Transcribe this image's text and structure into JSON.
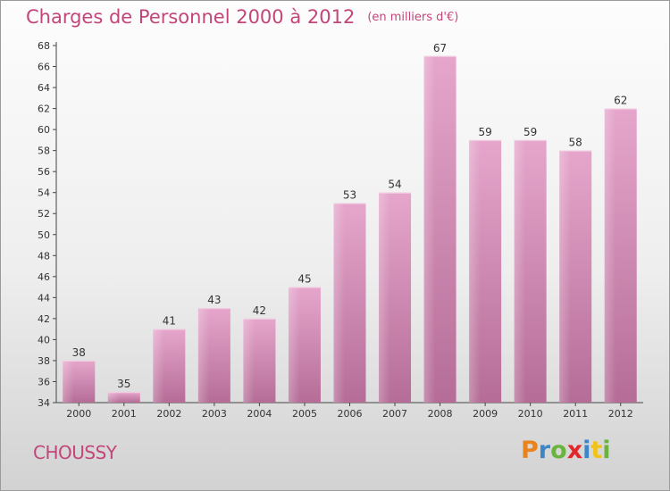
{
  "title": "Charges de Personnel 2000 à 2012",
  "subtitle": "(en milliers d'€)",
  "commune": "CHOUSSY",
  "logo": {
    "text": "Proxiti",
    "letters": [
      "P",
      "r",
      "o",
      "x",
      "i",
      "t",
      "i"
    ],
    "colors": [
      "#e8831d",
      "#3d87c8",
      "#6ab33d",
      "#e2262d",
      "#3d87c8",
      "#f1c21b",
      "#6ab33d"
    ]
  },
  "colors": {
    "bar_top": "#e6a6cc",
    "bar_bottom": "#b56d97",
    "title": "#c2467a"
  },
  "chart_data": {
    "type": "bar",
    "categories": [
      "2000",
      "2001",
      "2002",
      "2003",
      "2004",
      "2005",
      "2006",
      "2007",
      "2008",
      "2009",
      "2010",
      "2011",
      "2012"
    ],
    "values": [
      38,
      35,
      41,
      43,
      42,
      45,
      53,
      54,
      67,
      59,
      59,
      58,
      62
    ],
    "title": "Charges de Personnel 2000 à 2012",
    "xlabel": "",
    "ylabel": "",
    "ylim": [
      34,
      68
    ],
    "yticks": [
      34,
      36,
      38,
      40,
      42,
      44,
      46,
      48,
      50,
      52,
      54,
      56,
      58,
      60,
      62,
      64,
      66,
      68
    ],
    "data_labels": true,
    "grid": false
  }
}
